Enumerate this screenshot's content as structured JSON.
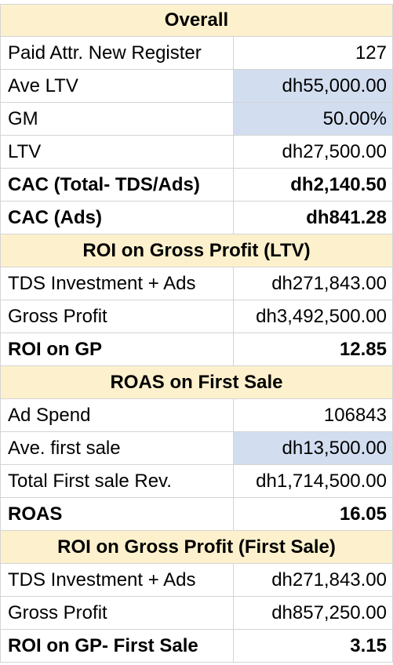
{
  "colors": {
    "header_bg": "#fdf1cd",
    "input_bg": "#d2def0",
    "grid": "#d4d4d4"
  },
  "rows": [
    {
      "type": "header",
      "text": "Overall"
    },
    {
      "type": "data",
      "label": "Paid Attr. New Register",
      "value": "127",
      "bold": false,
      "highlight": false
    },
    {
      "type": "data",
      "label": "Ave LTV",
      "value": "dh55,000.00",
      "bold": false,
      "highlight": true
    },
    {
      "type": "data",
      "label": "GM",
      "value": "50.00%",
      "bold": false,
      "highlight": true
    },
    {
      "type": "data",
      "label": "LTV",
      "value": "dh27,500.00",
      "bold": false,
      "highlight": false
    },
    {
      "type": "data",
      "label": "CAC (Total- TDS/Ads)",
      "value": "dh2,140.50",
      "bold": true,
      "highlight": false
    },
    {
      "type": "data",
      "label": "CAC (Ads)",
      "value": "dh841.28",
      "bold": true,
      "highlight": false
    },
    {
      "type": "header",
      "text": "ROI on Gross Profit (LTV)"
    },
    {
      "type": "data",
      "label": "TDS Investment + Ads",
      "value": "dh271,843.00",
      "bold": false,
      "highlight": false
    },
    {
      "type": "data",
      "label": "Gross Profit",
      "value": "dh3,492,500.00",
      "bold": false,
      "highlight": false
    },
    {
      "type": "data",
      "label": "ROI on GP",
      "value": "12.85",
      "bold": true,
      "highlight": false
    },
    {
      "type": "header",
      "text": "ROAS on First Sale"
    },
    {
      "type": "data",
      "label": "Ad Spend",
      "value": "106843",
      "bold": false,
      "highlight": false
    },
    {
      "type": "data",
      "label": "Ave. first sale",
      "value": "dh13,500.00",
      "bold": false,
      "highlight": true
    },
    {
      "type": "data",
      "label": "Total First sale Rev.",
      "value": "dh1,714,500.00",
      "bold": false,
      "highlight": false
    },
    {
      "type": "data",
      "label": "ROAS",
      "value": "16.05",
      "bold": true,
      "highlight": false
    },
    {
      "type": "header",
      "text": "ROI on Gross Profit (First Sale)"
    },
    {
      "type": "data",
      "label": "TDS Investment + Ads",
      "value": "dh271,843.00",
      "bold": false,
      "highlight": false
    },
    {
      "type": "data",
      "label": "Gross Profit",
      "value": "dh857,250.00",
      "bold": false,
      "highlight": false
    },
    {
      "type": "data",
      "label": "ROI on GP- First Sale",
      "value": "3.15",
      "bold": true,
      "highlight": false
    }
  ]
}
